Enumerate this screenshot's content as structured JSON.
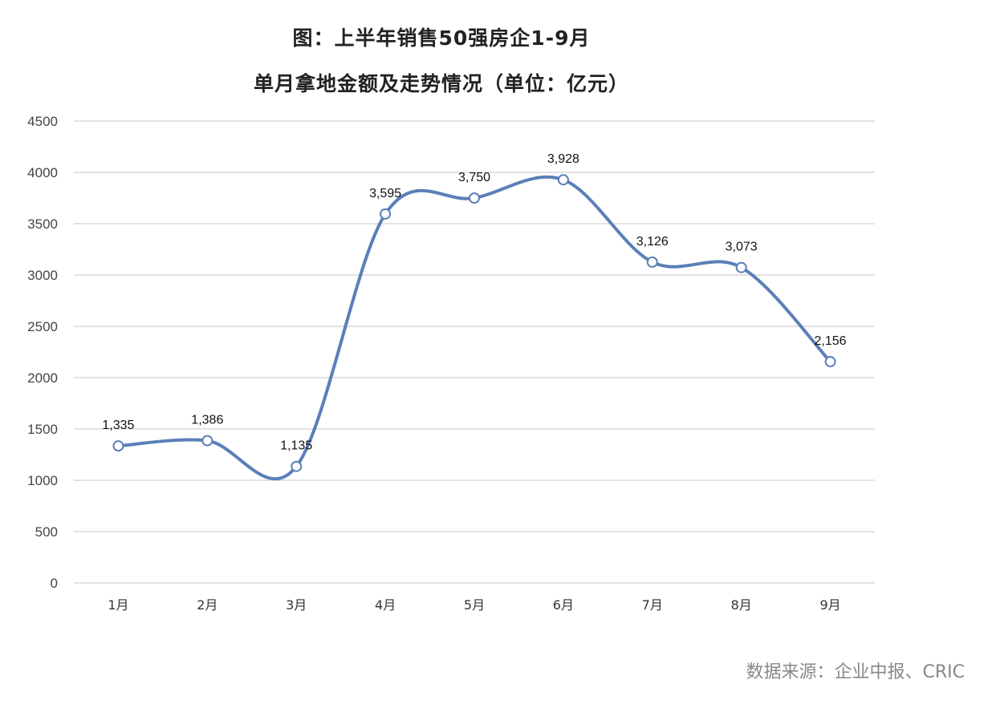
{
  "title_line1": "图：上半年销售50强房企1-9月",
  "title_line2": "单月拿地金额及走势情况（单位：亿元）",
  "source": "数据来源：企业中报、CRIC",
  "colors": {
    "line": "#5B7FB8",
    "grid": "#D9D9D9",
    "marker_fill": "#FFFFFF"
  },
  "chart_data": {
    "type": "line",
    "title": "图：上半年销售50强房企1-9月 单月拿地金额及走势情况（单位：亿元）",
    "xlabel": "",
    "ylabel": "",
    "categories": [
      "1月",
      "2月",
      "3月",
      "4月",
      "5月",
      "6月",
      "7月",
      "8月",
      "9月"
    ],
    "series": [
      {
        "name": "单月拿地金额",
        "values": [
          1335,
          1386,
          1135,
          3595,
          3750,
          3928,
          3126,
          3073,
          2156
        ]
      }
    ],
    "data_labels": [
      "1,335",
      "1,386",
      "1,135",
      "3,595",
      "3,750",
      "3,928",
      "3,126",
      "3,073",
      "2,156"
    ],
    "ylim": [
      0,
      4500
    ],
    "yticks": [
      0,
      500,
      1000,
      1500,
      2000,
      2500,
      3000,
      3500,
      4000,
      4500
    ],
    "grid": true,
    "smooth": true,
    "legend": "none",
    "source": "数据来源：企业中报、CRIC"
  }
}
